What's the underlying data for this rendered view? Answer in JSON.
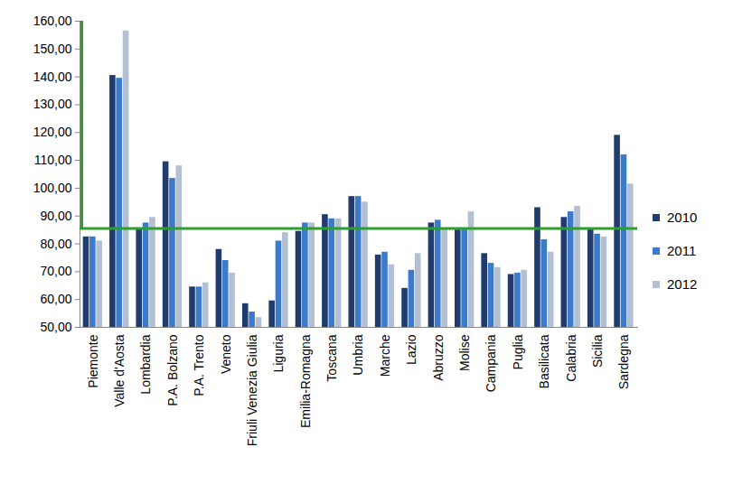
{
  "chart_data": {
    "type": "bar",
    "categories": [
      "Piemonte",
      "Valle d'Aosta",
      "Lombardia",
      "P.A. Bolzano",
      "P.A. Trento",
      "Veneto",
      "Friuli Venezia Giulia",
      "Liguria",
      "Emilia-Romagna",
      "Toscana",
      "Umbria",
      "Marche",
      "Lazio",
      "Abruzzo",
      "Molise",
      "Campania",
      "Puglia",
      "Basilicata",
      "Calabria",
      "Sicilia",
      "Sardegna"
    ],
    "series": [
      {
        "name": "2010",
        "color": "#203c6e",
        "values": [
          82.5,
          140.5,
          85.5,
          109.5,
          64.5,
          78,
          58.5,
          59.5,
          84.5,
          90.5,
          97,
          76,
          64,
          87.5,
          85,
          76.5,
          69,
          93,
          89.5,
          85.5,
          119
        ]
      },
      {
        "name": "2011",
        "color": "#3a7bcb",
        "values": [
          82.5,
          139.5,
          87.5,
          103.5,
          64.5,
          74,
          55.5,
          81,
          87.5,
          89,
          97,
          77,
          70.5,
          88.5,
          85,
          73,
          69.5,
          81.5,
          91.5,
          83.5,
          112
        ]
      },
      {
        "name": "2012",
        "color": "#b3bfd2",
        "values": [
          81,
          156.5,
          89.5,
          108,
          66,
          69.5,
          53.5,
          84,
          87.5,
          89,
          95,
          72.5,
          76.5,
          85.5,
          91.5,
          71.5,
          70.5,
          77,
          93.5,
          82.5,
          101.5
        ]
      }
    ],
    "ylim": [
      50,
      160
    ],
    "yticks": [
      {
        "value": 50,
        "label": "50,00"
      },
      {
        "value": 60,
        "label": "60,00"
      },
      {
        "value": 70,
        "label": "70,00"
      },
      {
        "value": 80,
        "label": "80,00"
      },
      {
        "value": 90,
        "label": "90,00"
      },
      {
        "value": 100,
        "label": "100,00"
      },
      {
        "value": 110,
        "label": "110,00"
      },
      {
        "value": 120,
        "label": "120,00"
      },
      {
        "value": 130,
        "label": "130,00"
      },
      {
        "value": 140,
        "label": "140,00"
      },
      {
        "value": 150,
        "label": "150,00"
      },
      {
        "value": 160,
        "label": "160,00"
      }
    ],
    "reference_line": {
      "value": 85.5,
      "color": "#2ca02c"
    },
    "grid": false,
    "legend": "right"
  }
}
